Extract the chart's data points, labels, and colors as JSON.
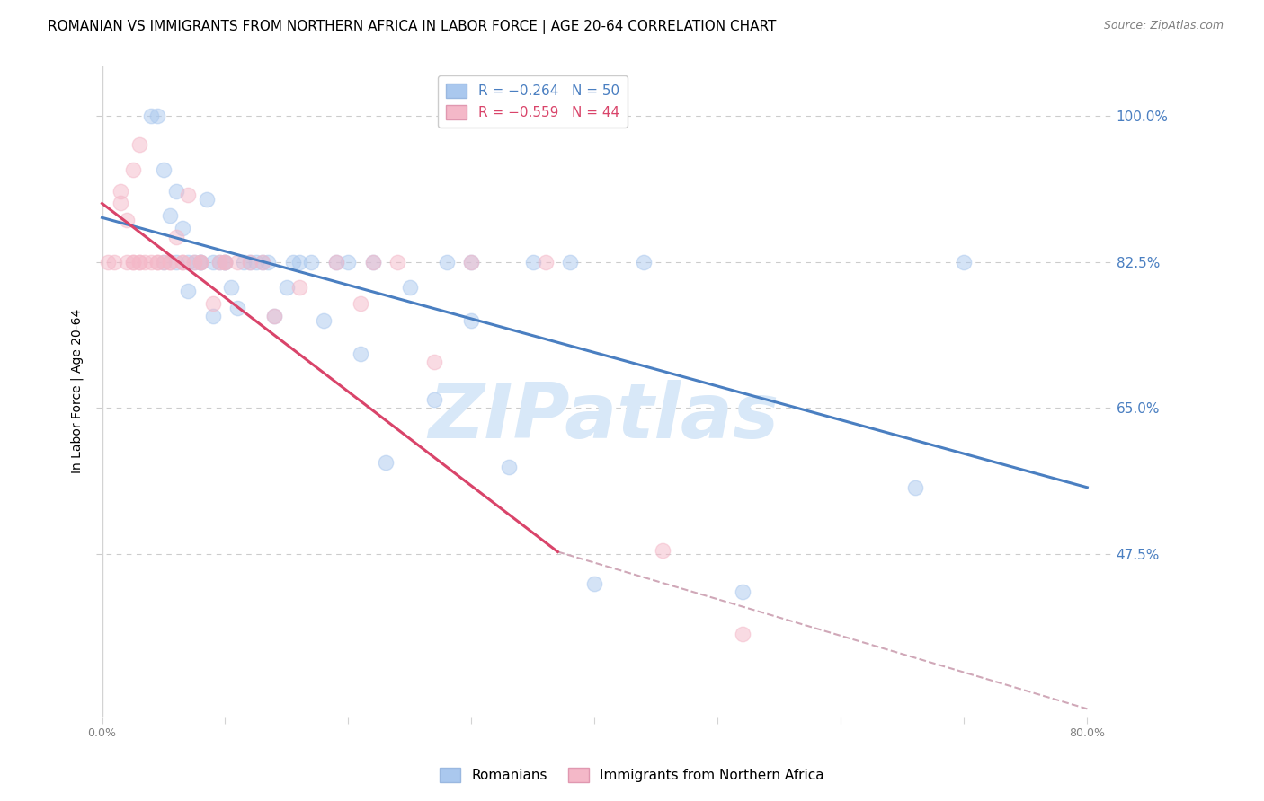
{
  "title": "ROMANIAN VS IMMIGRANTS FROM NORTHERN AFRICA IN LABOR FORCE | AGE 20-64 CORRELATION CHART",
  "source": "Source: ZipAtlas.com",
  "ylabel": "In Labor Force | Age 20-64",
  "right_ytick_vals": [
    1.0,
    0.825,
    0.65,
    0.475
  ],
  "right_ytick_labels": [
    "100.0%",
    "82.5%",
    "65.0%",
    "47.5%"
  ],
  "ylim": [
    0.28,
    1.06
  ],
  "xlim": [
    -0.005,
    0.82
  ],
  "blue_scatter_x": [
    0.04,
    0.045,
    0.05,
    0.055,
    0.06,
    0.065,
    0.07,
    0.075,
    0.08,
    0.085,
    0.09,
    0.095,
    0.1,
    0.105,
    0.11,
    0.115,
    0.12,
    0.125,
    0.13,
    0.135,
    0.14,
    0.15,
    0.155,
    0.16,
    0.17,
    0.18,
    0.19,
    0.21,
    0.23,
    0.25,
    0.27,
    0.3,
    0.33,
    0.38,
    0.4,
    0.44,
    0.52,
    0.66,
    0.7,
    0.05,
    0.06,
    0.07,
    0.08,
    0.09,
    0.1,
    0.3,
    0.2,
    0.35,
    0.22,
    0.28
  ],
  "blue_scatter_y": [
    1.0,
    1.0,
    0.935,
    0.88,
    0.91,
    0.865,
    0.825,
    0.825,
    0.825,
    0.9,
    0.825,
    0.825,
    0.825,
    0.795,
    0.77,
    0.825,
    0.825,
    0.825,
    0.825,
    0.825,
    0.76,
    0.795,
    0.825,
    0.825,
    0.825,
    0.755,
    0.825,
    0.715,
    0.585,
    0.795,
    0.66,
    0.755,
    0.58,
    0.825,
    0.44,
    0.825,
    0.43,
    0.555,
    0.825,
    0.825,
    0.825,
    0.79,
    0.825,
    0.76,
    0.825,
    0.825,
    0.825,
    0.825,
    0.825,
    0.825
  ],
  "pink_scatter_x": [
    0.005,
    0.01,
    0.015,
    0.015,
    0.02,
    0.02,
    0.025,
    0.025,
    0.03,
    0.03,
    0.035,
    0.04,
    0.045,
    0.05,
    0.055,
    0.06,
    0.065,
    0.07,
    0.075,
    0.08,
    0.09,
    0.095,
    0.1,
    0.11,
    0.12,
    0.13,
    0.14,
    0.16,
    0.19,
    0.21,
    0.22,
    0.24,
    0.27,
    0.3,
    0.36,
    0.025,
    0.03,
    0.045,
    0.055,
    0.065,
    0.08,
    0.1,
    0.455,
    0.52
  ],
  "pink_scatter_y": [
    0.825,
    0.825,
    0.895,
    0.91,
    0.825,
    0.875,
    0.825,
    0.935,
    0.825,
    0.965,
    0.825,
    0.825,
    0.825,
    0.825,
    0.825,
    0.855,
    0.825,
    0.905,
    0.825,
    0.825,
    0.775,
    0.825,
    0.825,
    0.825,
    0.825,
    0.825,
    0.76,
    0.795,
    0.825,
    0.775,
    0.825,
    0.825,
    0.705,
    0.825,
    0.825,
    0.825,
    0.825,
    0.825,
    0.825,
    0.825,
    0.825,
    0.825,
    0.48,
    0.38
  ],
  "blue_line_x": [
    0.0,
    0.8
  ],
  "blue_line_y": [
    0.878,
    0.555
  ],
  "pink_line_x": [
    0.0,
    0.37
  ],
  "pink_line_y": [
    0.895,
    0.478
  ],
  "dashed_line_x": [
    0.37,
    0.8
  ],
  "dashed_line_y": [
    0.478,
    0.29
  ],
  "blue_color": "#aac8ee",
  "pink_color": "#f4b8c8",
  "blue_line_color": "#4a7fc1",
  "pink_line_color": "#d9446a",
  "dashed_line_color": "#d0a8b8",
  "background_color": "#ffffff",
  "grid_color": "#cccccc",
  "title_fontsize": 11,
  "source_fontsize": 9,
  "axis_label_fontsize": 10,
  "tick_fontsize": 9,
  "legend_fontsize": 11,
  "scatter_size": 140,
  "scatter_alpha": 0.5,
  "right_axis_color": "#4a7fc1",
  "watermark_text": "ZIPatlas",
  "watermark_color": "#d8e8f8"
}
